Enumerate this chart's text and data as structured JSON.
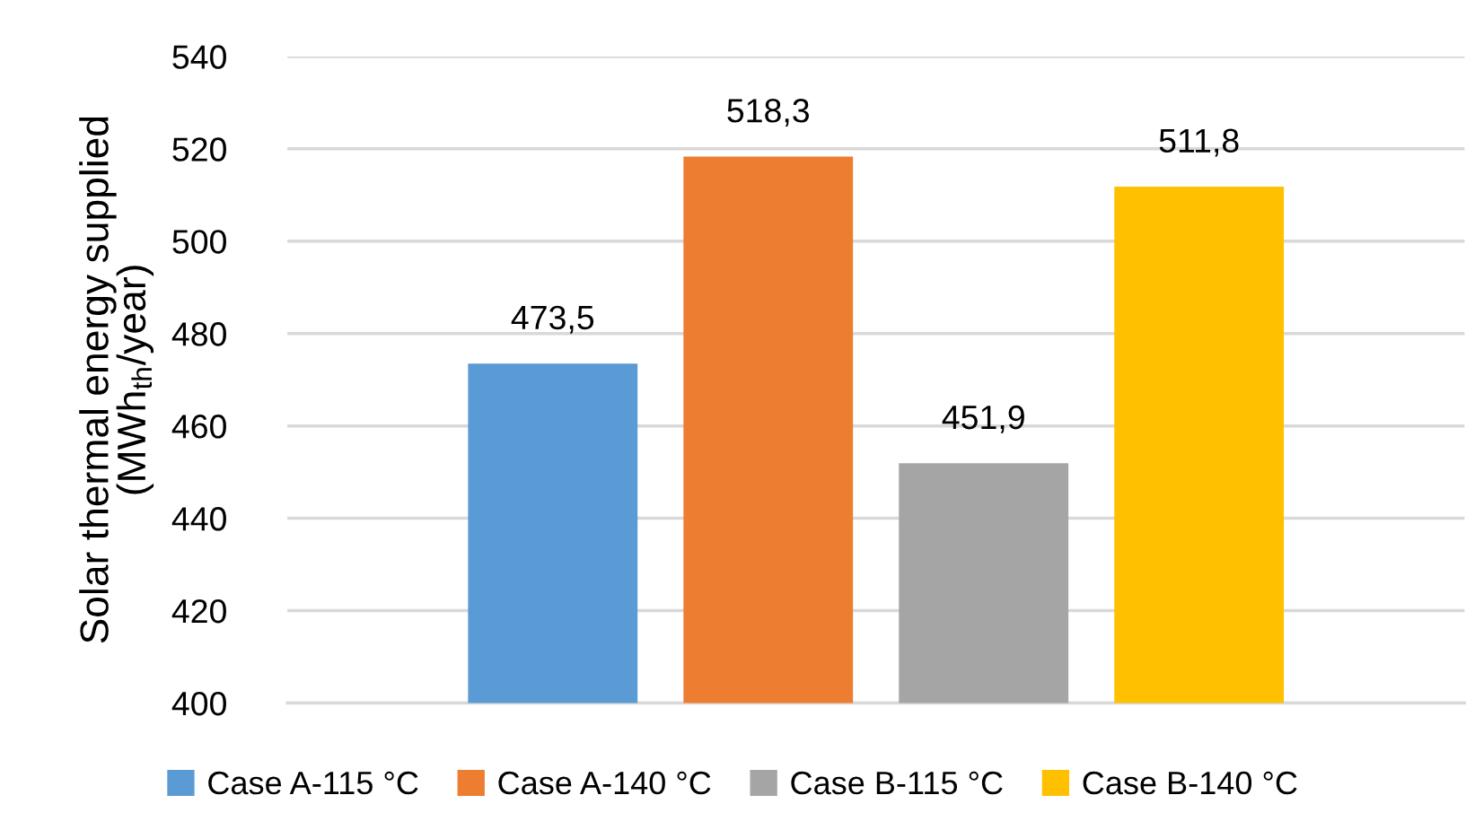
{
  "chart_data": {
    "type": "bar",
    "ylabel": "Solar thermal energy supplied\n(MWh$_{th}$/year)",
    "categories": [
      null
    ],
    "series": [
      {
        "name": "Case A-115 °C",
        "color": "#5b9bd5",
        "values": [
          473.5
        ],
        "value_labels": [
          "473,5"
        ]
      },
      {
        "name": "Case A-140 °C",
        "color": "#ed7d31",
        "values": [
          518.3
        ],
        "value_labels": [
          "518,3"
        ]
      },
      {
        "name": "Case B-115 °C",
        "color": "#a5a5a5",
        "values": [
          451.9
        ],
        "value_labels": [
          "451,9"
        ]
      },
      {
        "name": "Case B-140 °C",
        "color": "#ffc000",
        "values": [
          511.8
        ],
        "value_labels": [
          "511,8"
        ]
      }
    ],
    "ylim": [
      400,
      540
    ],
    "yticks": [
      400,
      420,
      440,
      460,
      480,
      500,
      520,
      540
    ],
    "grid": "y",
    "legend": "bottom",
    "tick_labels": "y"
  }
}
